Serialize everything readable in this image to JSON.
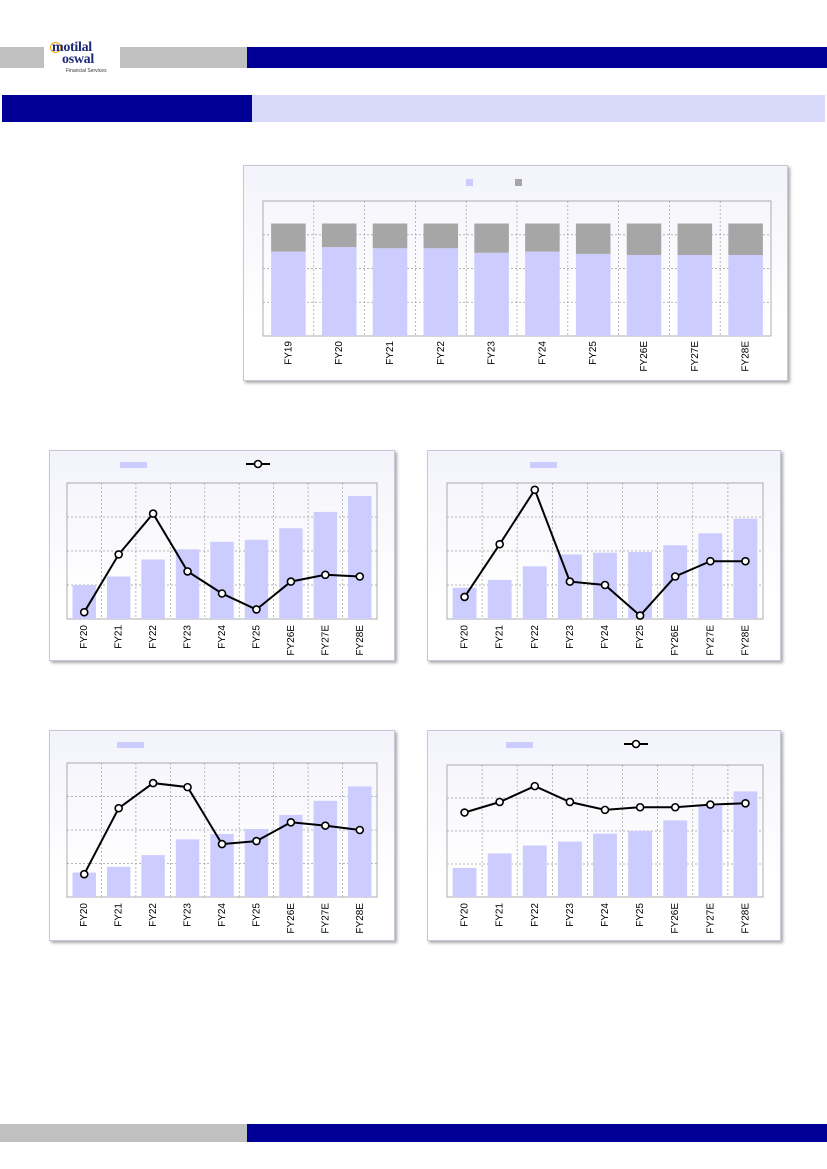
{
  "header": {
    "logo_line1": "motilal",
    "logo_line2": "oswal",
    "logo_tagline": "Financial Services"
  },
  "colors": {
    "navy": "#000096",
    "grey_band": "#c0c0c0",
    "lavender_band": "#d9d9fb",
    "bar_fill": "#ccccff",
    "bar_stack_top": "#a6a6a6",
    "line": "#000000"
  },
  "chart_data": [
    {
      "id": "chart1",
      "type": "bar",
      "stacked": true,
      "categories": [
        "FY19",
        "FY20",
        "FY21",
        "FY22",
        "FY23",
        "FY24",
        "FY25",
        "FY26E",
        "FY27E",
        "FY28E"
      ],
      "series": [
        {
          "values": [
            75,
            79,
            78,
            78,
            74,
            75,
            73,
            72,
            72,
            72
          ]
        },
        {
          "values": [
            25,
            21,
            22,
            22,
            26,
            25,
            27,
            28,
            28,
            28
          ]
        }
      ],
      "ylim": [
        0,
        120
      ],
      "grid": true,
      "legend": "top-center"
    },
    {
      "id": "chart2",
      "type": "bar",
      "categories": [
        "FY20",
        "FY21",
        "FY22",
        "FY23",
        "FY24",
        "FY25",
        "FY26E",
        "FY27E",
        "FY28E"
      ],
      "series": [
        {
          "type": "bar",
          "values": [
            1.0,
            1.25,
            1.75,
            2.05,
            2.27,
            2.33,
            2.67,
            3.15,
            3.62
          ]
        },
        {
          "type": "line",
          "values": [
            0.2,
            1.9,
            3.1,
            1.4,
            0.75,
            0.28,
            1.1,
            1.3,
            1.25
          ]
        }
      ],
      "ylim": [
        0,
        4
      ],
      "grid": true,
      "legend": "top-center"
    },
    {
      "id": "chart3",
      "type": "bar",
      "categories": [
        "FY20",
        "FY21",
        "FY22",
        "FY23",
        "FY24",
        "FY25",
        "FY26E",
        "FY27E",
        "FY28E"
      ],
      "series": [
        {
          "type": "bar",
          "values": [
            0.92,
            1.15,
            1.55,
            1.9,
            1.95,
            1.97,
            2.17,
            2.52,
            2.95
          ]
        },
        {
          "type": "line",
          "values": [
            0.65,
            2.2,
            3.8,
            1.1,
            1.0,
            0.1,
            1.25,
            1.7,
            1.7
          ]
        }
      ],
      "ylim": [
        0,
        4
      ],
      "grid": true,
      "legend": "top-left"
    },
    {
      "id": "chart4",
      "type": "bar",
      "categories": [
        "FY20",
        "FY21",
        "FY22",
        "FY23",
        "FY24",
        "FY25",
        "FY26E",
        "FY27E",
        "FY28E"
      ],
      "series": [
        {
          "type": "bar",
          "values": [
            0.73,
            0.9,
            1.25,
            1.72,
            1.88,
            2.03,
            2.45,
            2.87,
            3.3
          ]
        },
        {
          "type": "line",
          "values": [
            0.68,
            2.65,
            3.4,
            3.28,
            1.58,
            1.67,
            2.23,
            2.13,
            2.0
          ]
        }
      ],
      "ylim": [
        0,
        4
      ],
      "grid": true,
      "legend": "top-left"
    },
    {
      "id": "chart5",
      "type": "bar",
      "categories": [
        "FY20",
        "FY21",
        "FY22",
        "FY23",
        "FY24",
        "FY25",
        "FY26E",
        "FY27E",
        "FY28E"
      ],
      "series": [
        {
          "type": "bar",
          "values": [
            1.1,
            1.65,
            1.95,
            2.1,
            2.4,
            2.5,
            2.9,
            3.45,
            4.0
          ]
        },
        {
          "type": "line",
          "values": [
            3.2,
            3.6,
            4.2,
            3.6,
            3.3,
            3.4,
            3.4,
            3.5,
            3.55
          ]
        }
      ],
      "ylim": [
        0,
        5
      ],
      "grid": true,
      "legend": "top-center"
    }
  ]
}
